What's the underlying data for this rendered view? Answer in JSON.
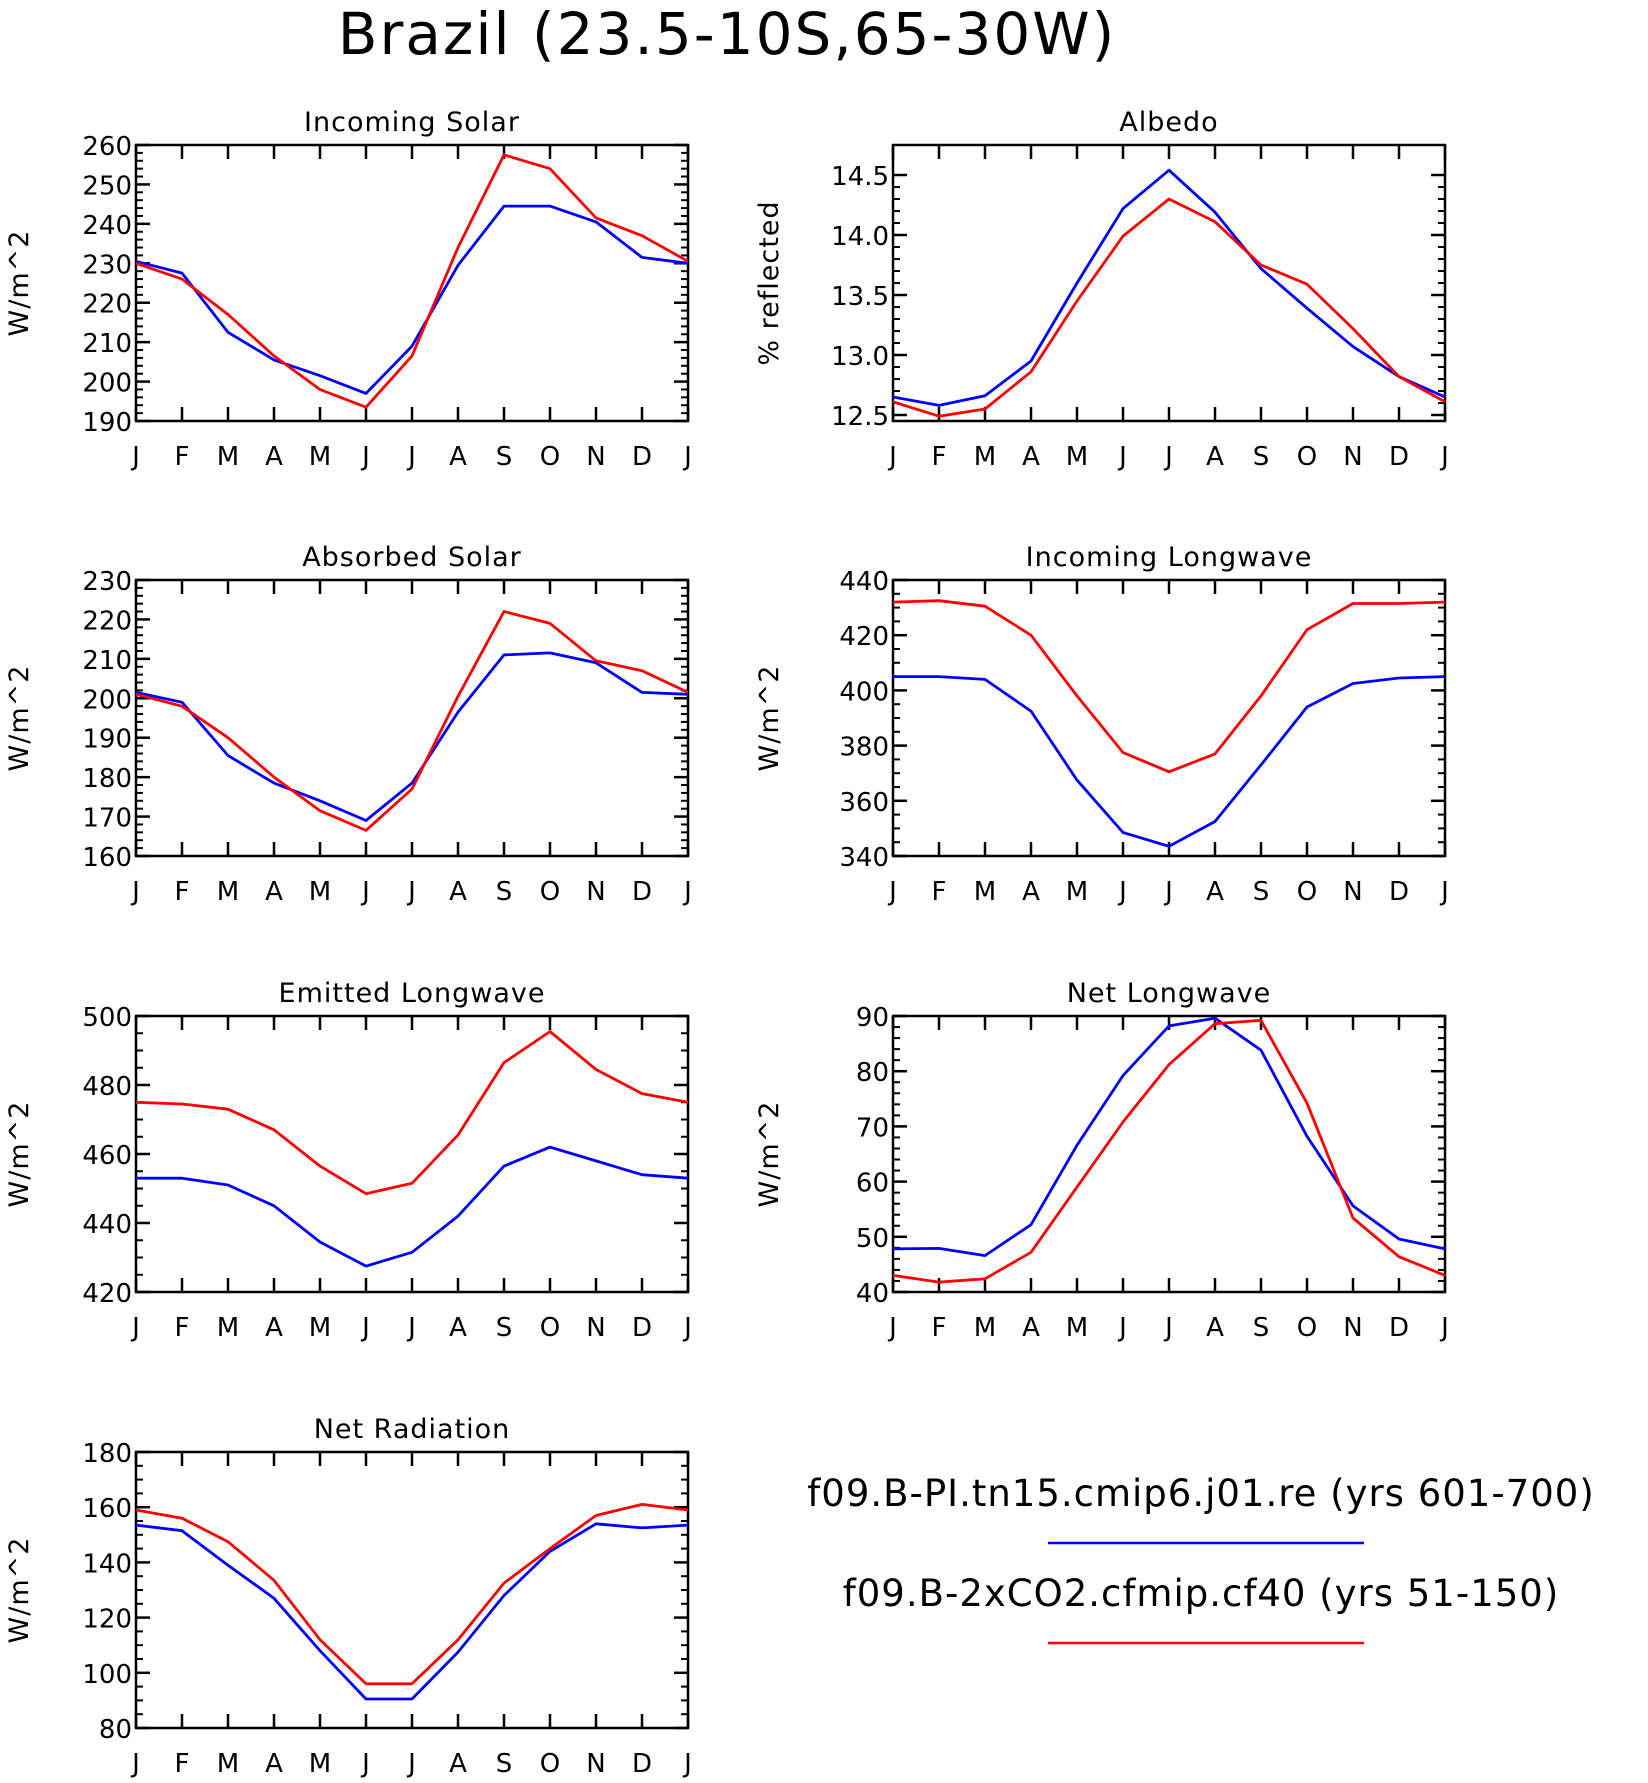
{
  "title": "Brazil (23.5-10S,65-30W)",
  "legend": [
    {
      "label": "f09.B-PI.tn15.cmip6.j01.re (yrs 601-700)",
      "color": "#0000ff"
    },
    {
      "label": "f09.B-2xCO2.cfmip.cf40 (yrs 51-150)",
      "color": "#ff0000"
    }
  ],
  "chart_data": [
    {
      "type": "line",
      "title": "Incoming Solar",
      "ylabel": "W/m^2",
      "categories": [
        "J",
        "F",
        "M",
        "A",
        "M",
        "J",
        "J",
        "A",
        "S",
        "O",
        "N",
        "D",
        "J"
      ],
      "ylim": [
        190,
        260
      ],
      "yticks": [
        190,
        200,
        210,
        220,
        230,
        240,
        250,
        260
      ],
      "yticklabels": [
        "190",
        "200",
        "210",
        "220",
        "230",
        "240",
        "250",
        "260"
      ],
      "series": [
        {
          "color": "#0000ff",
          "values": [
            230.5,
            227.5,
            212.5,
            205.5,
            201.5,
            197,
            209,
            229.5,
            244.5,
            244.5,
            240.5,
            231.5,
            230
          ]
        },
        {
          "color": "#ff0000",
          "values": [
            230,
            226,
            217,
            206.5,
            198,
            193.5,
            206.5,
            234,
            257.5,
            254,
            241.5,
            237,
            230.5
          ]
        }
      ]
    },
    {
      "type": "line",
      "title": "Albedo",
      "ylabel": "% reflected",
      "categories": [
        "J",
        "F",
        "M",
        "A",
        "M",
        "J",
        "J",
        "A",
        "S",
        "O",
        "N",
        "D",
        "J"
      ],
      "ylim": [
        12.45,
        14.75
      ],
      "yticks": [
        12.5,
        13.0,
        13.5,
        14.0,
        14.5
      ],
      "yticklabels": [
        "12.5",
        "13.0",
        "13.5",
        "14.0",
        "14.5"
      ],
      "series": [
        {
          "color": "#0000ff",
          "values": [
            12.65,
            12.58,
            12.66,
            12.95,
            13.6,
            14.22,
            14.54,
            14.19,
            13.72,
            13.39,
            13.07,
            12.82,
            12.65
          ]
        },
        {
          "color": "#ff0000",
          "values": [
            12.61,
            12.49,
            12.55,
            12.86,
            13.45,
            13.99,
            14.3,
            14.11,
            13.75,
            13.59,
            13.22,
            12.82,
            12.61
          ]
        }
      ]
    },
    {
      "type": "line",
      "title": "Absorbed Solar",
      "ylabel": "W/m^2",
      "categories": [
        "J",
        "F",
        "M",
        "A",
        "M",
        "J",
        "J",
        "A",
        "S",
        "O",
        "N",
        "D",
        "J"
      ],
      "ylim": [
        160,
        230
      ],
      "yticks": [
        160,
        170,
        180,
        190,
        200,
        210,
        220,
        230
      ],
      "yticklabels": [
        "160",
        "170",
        "180",
        "190",
        "200",
        "210",
        "220",
        "230"
      ],
      "series": [
        {
          "color": "#0000ff",
          "values": [
            201.5,
            199,
            185.5,
            178.5,
            174,
            169,
            178.5,
            196.5,
            211,
            211.5,
            209,
            201.5,
            201
          ]
        },
        {
          "color": "#ff0000",
          "values": [
            201,
            198,
            190,
            180,
            171.5,
            166.5,
            177,
            200.5,
            222,
            219,
            209.5,
            207,
            201.5
          ]
        }
      ]
    },
    {
      "type": "line",
      "title": "Incoming Longwave",
      "ylabel": "W/m^2",
      "categories": [
        "J",
        "F",
        "M",
        "A",
        "M",
        "J",
        "J",
        "A",
        "S",
        "O",
        "N",
        "D",
        "J"
      ],
      "ylim": [
        340,
        440
      ],
      "yticks": [
        340,
        360,
        380,
        400,
        420,
        440
      ],
      "yticklabels": [
        "340",
        "360",
        "380",
        "400",
        "420",
        "440"
      ],
      "series": [
        {
          "color": "#0000ff",
          "values": [
            405,
            405,
            404,
            392.5,
            367.5,
            348.5,
            343.5,
            352.5,
            373,
            394,
            402.5,
            404.5,
            405
          ]
        },
        {
          "color": "#ff0000",
          "values": [
            432,
            432.5,
            430.5,
            420,
            398,
            377.5,
            370.5,
            377,
            398,
            422,
            431.5,
            431.5,
            432
          ]
        }
      ]
    },
    {
      "type": "line",
      "title": "Emitted Longwave",
      "ylabel": "W/m^2",
      "categories": [
        "J",
        "F",
        "M",
        "A",
        "M",
        "J",
        "J",
        "A",
        "S",
        "O",
        "N",
        "D",
        "J"
      ],
      "ylim": [
        420,
        500
      ],
      "yticks": [
        420,
        440,
        460,
        480,
        500
      ],
      "yticklabels": [
        "420",
        "440",
        "460",
        "480",
        "500"
      ],
      "series": [
        {
          "color": "#0000ff",
          "values": [
            453,
            453,
            451,
            445,
            434.5,
            427.5,
            431.5,
            442,
            456.5,
            462,
            458,
            454,
            453
          ]
        },
        {
          "color": "#ff0000",
          "values": [
            475,
            474.5,
            473,
            467,
            456.5,
            448.5,
            451.5,
            465.5,
            486.5,
            495.5,
            484.5,
            477.5,
            475
          ]
        }
      ]
    },
    {
      "type": "line",
      "title": "Net Longwave",
      "ylabel": "W/m^2",
      "categories": [
        "J",
        "F",
        "M",
        "A",
        "M",
        "J",
        "J",
        "A",
        "S",
        "O",
        "N",
        "D",
        "J"
      ],
      "ylim": [
        40,
        90
      ],
      "yticks": [
        40,
        50,
        60,
        70,
        80,
        90
      ],
      "yticklabels": [
        "40",
        "50",
        "60",
        "70",
        "80",
        "90"
      ],
      "series": [
        {
          "color": "#0000ff",
          "values": [
            47.8,
            47.9,
            46.6,
            52.2,
            66.6,
            79.2,
            88.2,
            89.6,
            83.8,
            68.2,
            55.6,
            49.6,
            47.8
          ]
        },
        {
          "color": "#ff0000",
          "values": [
            43,
            41.8,
            42.4,
            47.2,
            59,
            70.8,
            81.2,
            88.6,
            89.2,
            74.2,
            53.4,
            46.4,
            43
          ]
        }
      ]
    },
    {
      "type": "line",
      "title": "Net Radiation",
      "ylabel": "W/m^2",
      "categories": [
        "J",
        "F",
        "M",
        "A",
        "M",
        "J",
        "J",
        "A",
        "S",
        "O",
        "N",
        "D",
        "J"
      ],
      "ylim": [
        80,
        180
      ],
      "yticks": [
        80,
        100,
        120,
        140,
        160,
        180
      ],
      "yticklabels": [
        "80",
        "100",
        "120",
        "140",
        "160",
        "180"
      ],
      "series": [
        {
          "color": "#0000ff",
          "values": [
            153.5,
            151.5,
            139,
            127,
            108,
            90.5,
            90.5,
            107.5,
            128,
            144,
            154,
            152.5,
            153.5
          ]
        },
        {
          "color": "#ff0000",
          "values": [
            159,
            156,
            147.5,
            133.5,
            112,
            96,
            96,
            112,
            132.5,
            145,
            157,
            161,
            159
          ]
        }
      ]
    }
  ]
}
